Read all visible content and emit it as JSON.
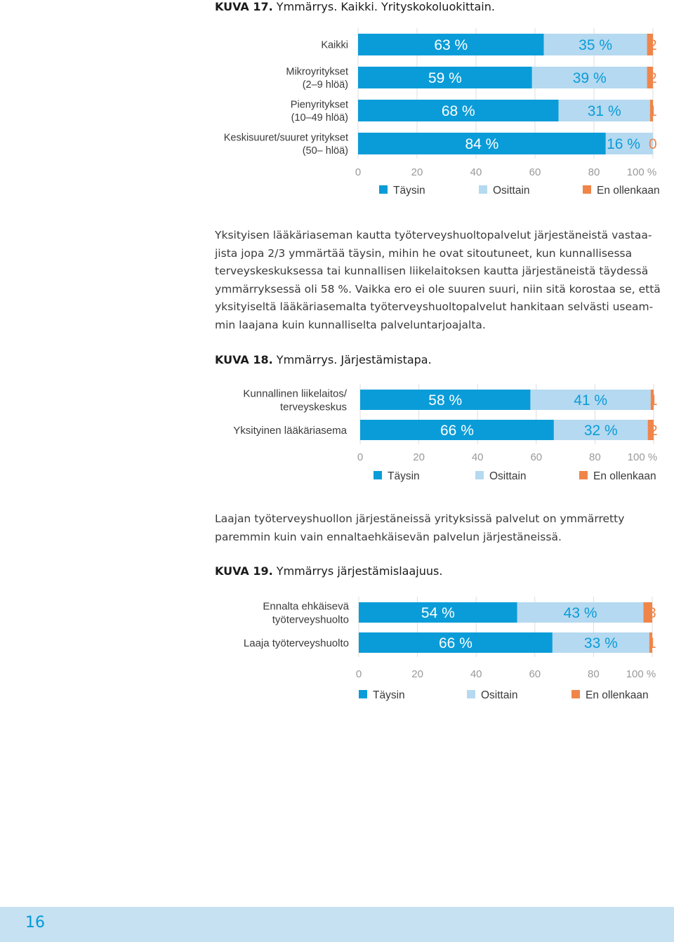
{
  "colors": {
    "full": "#0a9cd8",
    "partial": "#b5d9f0",
    "none": "#f0854a",
    "grid": "#dddddd",
    "axis": "#999999",
    "label": "#3a3a3a",
    "footer": "#c6e1f2",
    "page_number": "#0099d8"
  },
  "figure17": {
    "kuva": "KUVA 17.",
    "caption": "Ymmärrys. Kaikki. Yrityskokoluokittain."
  },
  "figure18": {
    "kuva": "KUVA 18.",
    "caption": "Ymmärrys. Järjestämistapa."
  },
  "figure19": {
    "kuva": "KUVA 19.",
    "caption": "Ymmärrys järjestämislaajuus."
  },
  "paragraph1": {
    "lines": [
      "Yksityisen lääkäriaseman kautta työterveyshuoltopalvelut järjestäneistä vastaa-",
      "jista jopa 2/3 ymmärtää täysin, mihin he ovat sitoutuneet, kun kunnallisessa",
      "terveyskeskuksessa tai kunnallisen liikelaitoksen kautta järjestäneistä täydessä",
      "ymmärryksessä oli 58 %. Vaikka ero ei ole suuren suuri, niin sitä korostaa se, että",
      "yksityiseltä lääkäriasemalta työterveyshuoltopalvelut hankitaan selvästi useam-",
      "min laajana kuin kunnalliselta palveluntarjoajalta."
    ]
  },
  "paragraph2": {
    "lines": [
      "Laajan työterveyshuollon järjestäneissä yrityksissä palvelut on ymmärretty",
      "paremmin kuin vain ennaltaehkäisevän palvelun järjestäneissä."
    ]
  },
  "page_number": "16",
  "chart_data": [
    {
      "type": "bar",
      "orientation": "horizontal-stacked",
      "title": "KUVA 17. Ymmärrys. Kaikki. Yrityskokoluokittain.",
      "categories": [
        [
          "Kaikki"
        ],
        [
          "Mikroyritykset",
          "(2–9 hlöä)"
        ],
        [
          "Pienyritykset",
          "(10–49 hlöä)"
        ],
        [
          "Keskisuuret/suuret yritykset",
          "(50– hlöä)"
        ]
      ],
      "series": [
        {
          "name": "Täysin",
          "color": "#0a9cd8",
          "values": [
            63,
            59,
            68,
            84
          ],
          "labels": [
            "63 %",
            "59 %",
            "68 %",
            "84 %"
          ]
        },
        {
          "name": "Osittain",
          "color": "#b5d9f0",
          "values": [
            35,
            39,
            31,
            16
          ],
          "labels": [
            "35 %",
            "39 %",
            "31 %",
            "16 %"
          ]
        },
        {
          "name": "En ollenkaan",
          "color": "#f0854a",
          "values": [
            2,
            2,
            1,
            0
          ],
          "labels": [
            "2",
            "2",
            "1",
            "0"
          ]
        }
      ],
      "xlim": [
        0,
        100
      ],
      "ticks": [
        "0",
        "20",
        "40",
        "60",
        "80",
        "100 %"
      ],
      "legend": [
        "Täysin",
        "Osittain",
        "En ollenkaan"
      ],
      "legend_position": "bottom",
      "grid": true
    },
    {
      "type": "bar",
      "orientation": "horizontal-stacked",
      "title": "KUVA 18. Ymmärrys. Järjestämistapa.",
      "categories": [
        [
          "Kunnallinen liikelaitos/",
          "terveyskeskus"
        ],
        [
          "Yksityinen lääkäriasema"
        ]
      ],
      "series": [
        {
          "name": "Täysin",
          "color": "#0a9cd8",
          "values": [
            58,
            66
          ],
          "labels": [
            "58 %",
            "66 %"
          ]
        },
        {
          "name": "Osittain",
          "color": "#b5d9f0",
          "values": [
            41,
            32
          ],
          "labels": [
            "41 %",
            "32 %"
          ]
        },
        {
          "name": "En ollenkaan",
          "color": "#f0854a",
          "values": [
            1,
            2
          ],
          "labels": [
            "1",
            "2"
          ]
        }
      ],
      "xlim": [
        0,
        100
      ],
      "ticks": [
        "0",
        "20",
        "40",
        "60",
        "80",
        "100 %"
      ],
      "legend": [
        "Täysin",
        "Osittain",
        "En ollenkaan"
      ],
      "legend_position": "bottom",
      "grid": true
    },
    {
      "type": "bar",
      "orientation": "horizontal-stacked",
      "title": "KUVA 19. Ymmärrys järjestämislaajuus.",
      "categories": [
        [
          "Ennalta ehkäisevä",
          "työterveyshuolto"
        ],
        [
          "Laaja työterveyshuolto"
        ]
      ],
      "series": [
        {
          "name": "Täysin",
          "color": "#0a9cd8",
          "values": [
            54,
            66
          ],
          "labels": [
            "54 %",
            "66 %"
          ]
        },
        {
          "name": "Osittain",
          "color": "#b5d9f0",
          "values": [
            43,
            33
          ],
          "labels": [
            "43 %",
            "33 %"
          ]
        },
        {
          "name": "En ollenkaan",
          "color": "#f0854a",
          "values": [
            3,
            1
          ],
          "labels": [
            "3",
            "1"
          ]
        }
      ],
      "xlim": [
        0,
        100
      ],
      "ticks": [
        "0",
        "20",
        "40",
        "60",
        "80",
        "100 %"
      ],
      "legend": [
        "Täysin",
        "Osittain",
        "En ollenkaan"
      ],
      "legend_position": "bottom",
      "grid": true
    }
  ]
}
